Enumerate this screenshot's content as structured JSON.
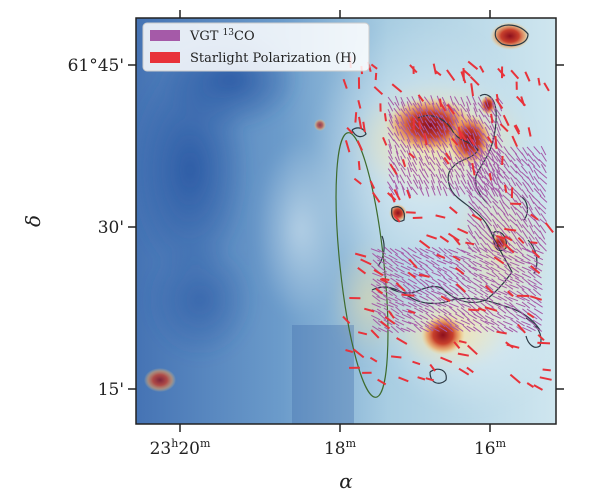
{
  "chart_data": {
    "type": "image-map",
    "xlabel": "α",
    "ylabel": "δ",
    "x_ticks": [
      {
        "label": "23h20m",
        "value_minutes": 1400
      },
      {
        "label": "18m",
        "value_minutes": 1398
      },
      {
        "label": "16m",
        "value_minutes": 1396
      }
    ],
    "y_ticks": [
      {
        "label": "61°45'",
        "value_arcmin": 45
      },
      {
        "label": "30'",
        "value_arcmin": 30
      },
      {
        "label": "15'",
        "value_arcmin": 15
      }
    ],
    "legend": {
      "position": "top-left",
      "entries": [
        {
          "label": "VGT ¹³CO",
          "color": "#a55aa8"
        },
        {
          "label": "Starlight Polarization (H)",
          "color": "#e8323a"
        }
      ]
    },
    "colormap": "RdYlBu_r",
    "contour_color": "#2b3a45",
    "ellipse_color": "#3e6b2d"
  }
}
